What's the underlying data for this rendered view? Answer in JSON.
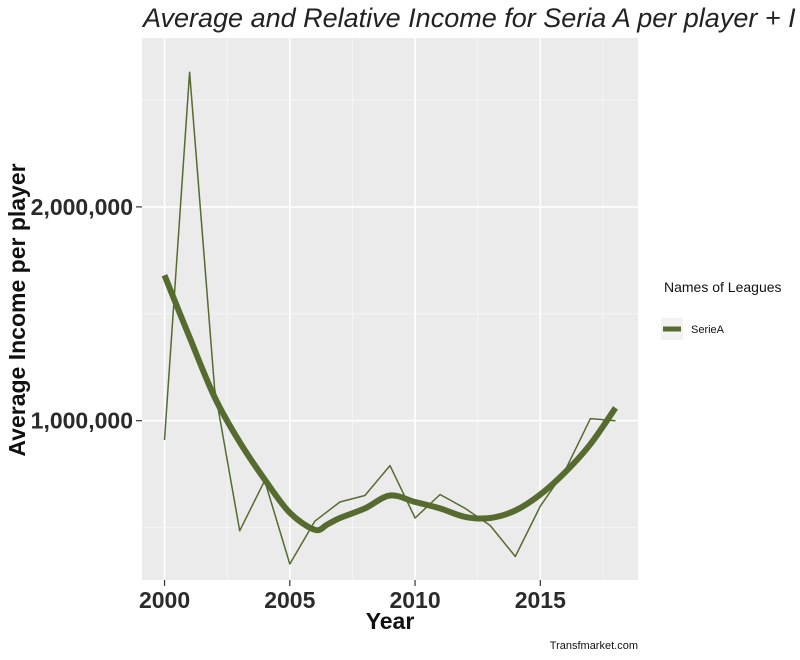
{
  "chart_data": {
    "type": "line",
    "title": "Average and Relative  Income for Seria A  per player + I",
    "xlabel": "Year",
    "ylabel": "Average Income  per player",
    "caption": "Transfmarket.com",
    "xlim": [
      1999.1,
      2018.9
    ],
    "ylim": [
      255000,
      2790000
    ],
    "x_ticks": [
      2000,
      2005,
      2010,
      2015
    ],
    "x_tick_labels": [
      "2000",
      "2005",
      "2010",
      "2015"
    ],
    "y_ticks": [
      1000000,
      2000000
    ],
    "y_tick_labels": [
      "1,000,000",
      "2,000,000"
    ],
    "grid": true,
    "legend": {
      "title": "Names of Leagues",
      "position": "right",
      "entries": [
        "SerieA"
      ]
    },
    "series": [
      {
        "name": "SerieA",
        "color": "#556b2f",
        "x": [
          2000,
          2001,
          2002,
          2003,
          2004,
          2005,
          2006,
          2007,
          2008,
          2009,
          2010,
          2011,
          2012,
          2013,
          2014,
          2015,
          2016,
          2017,
          2018
        ],
        "values": [
          910000,
          2630000,
          1150000,
          485000,
          720000,
          330000,
          530000,
          620000,
          650000,
          790000,
          545000,
          655000,
          590000,
          510000,
          365000,
          600000,
          770000,
          1010000,
          1000000
        ]
      }
    ],
    "smooth": {
      "name": "SerieA",
      "color": "#556b2f",
      "x": [
        2000,
        2001,
        2002,
        2003,
        2004,
        2005,
        2006,
        2006.5,
        2007,
        2008,
        2009,
        2010,
        2011,
        2012,
        2013,
        2014,
        2015,
        2016,
        2017,
        2018
      ],
      "values": [
        1680000,
        1390000,
        1110000,
        900000,
        725000,
        570000,
        490000,
        515000,
        545000,
        590000,
        650000,
        620000,
        590000,
        550000,
        545000,
        580000,
        655000,
        760000,
        890000,
        1060000
      ]
    }
  }
}
